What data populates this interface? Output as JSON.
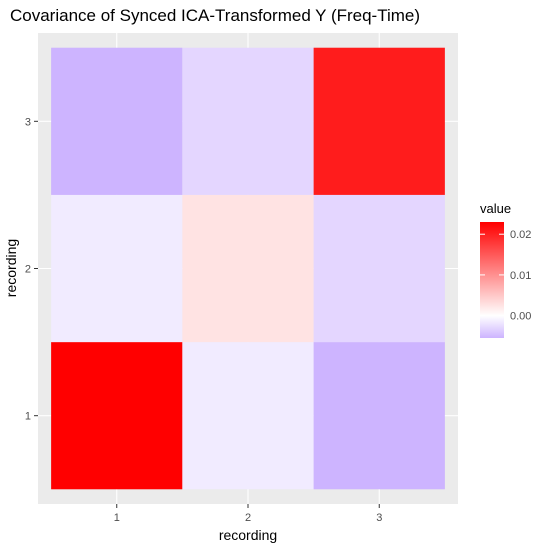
{
  "chart_data": {
    "type": "heatmap",
    "title": "Covariance of Synced ICA-Transformed Y (Freq-Time)",
    "xlabel": "recording",
    "ylabel": "recording",
    "x_categories": [
      "1",
      "2",
      "3"
    ],
    "y_categories": [
      "1",
      "2",
      "3"
    ],
    "cells": [
      {
        "x": "1",
        "y": "1",
        "value": 0.023
      },
      {
        "x": "2",
        "y": "1",
        "value": -0.0015
      },
      {
        "x": "3",
        "y": "1",
        "value": -0.0055
      },
      {
        "x": "1",
        "y": "2",
        "value": -0.0015
      },
      {
        "x": "2",
        "y": "2",
        "value": 0.0025
      },
      {
        "x": "3",
        "y": "2",
        "value": -0.003
      },
      {
        "x": "1",
        "y": "3",
        "value": -0.0055
      },
      {
        "x": "2",
        "y": "3",
        "value": -0.003
      },
      {
        "x": "3",
        "y": "3",
        "value": 0.0205
      }
    ],
    "legend": {
      "title": "value",
      "ticks": [
        0.02,
        0.01,
        0.0
      ],
      "tick_labels": [
        "0.02",
        "0.01",
        "0.00"
      ],
      "range": [
        -0.0055,
        0.023
      ],
      "position": "right"
    },
    "colors": {
      "low": "#cdb4ff",
      "mid": "#ffffff",
      "high": "#ff0000",
      "panel": "#ebebeb",
      "grid": "#ffffff"
    },
    "grid": true
  }
}
